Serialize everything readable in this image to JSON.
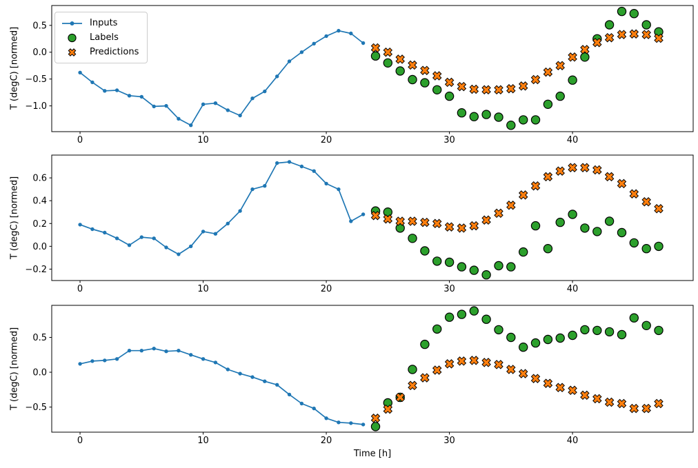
{
  "colors": {
    "inputs": "#1f77b4",
    "labels_fill": "#2ca02c",
    "predictions_fill": "#ff7f0e",
    "marker_edge": "#000000",
    "axis": "#000000",
    "text": "#000000",
    "legend_border": "#cccccc",
    "background": "#ffffff"
  },
  "legend": {
    "items": [
      {
        "label": "Inputs",
        "marker": "line-dot"
      },
      {
        "label": "Labels",
        "marker": "circle"
      },
      {
        "label": "Predictions",
        "marker": "x-cross"
      }
    ]
  },
  "axes": {
    "ylabel": "T (degC) [normed]",
    "xlabel": "Time [h]",
    "x_ticks": [
      0,
      10,
      20,
      30,
      40
    ],
    "xlim": [
      -2.3,
      49.8
    ]
  },
  "chart_data": [
    {
      "type": "line",
      "panel": 1,
      "title": "",
      "xlabel": "",
      "ylabel": "T (degC) [normed]",
      "x_ticks": [
        0,
        10,
        20,
        30,
        40
      ],
      "y_ticks": [
        0.5,
        0.0,
        -0.5,
        -1.0
      ],
      "xlim": [
        -2.3,
        49.8
      ],
      "ylim": [
        -1.48,
        0.87
      ],
      "grid": false,
      "legend_position": "upper left",
      "series": [
        {
          "name": "Inputs",
          "type": "line",
          "marker": "dot",
          "color": "#1f77b4",
          "x": [
            0,
            1,
            2,
            3,
            4,
            5,
            6,
            7,
            8,
            9,
            10,
            11,
            12,
            13,
            14,
            15,
            16,
            17,
            18,
            19,
            20,
            21,
            22,
            23
          ],
          "values": [
            -0.38,
            -0.56,
            -0.72,
            -0.71,
            -0.81,
            -0.83,
            -1.01,
            -1.0,
            -1.24,
            -1.36,
            -0.97,
            -0.95,
            -1.08,
            -1.18,
            -0.86,
            -0.73,
            -0.45,
            -0.17,
            0.0,
            0.16,
            0.3,
            0.4,
            0.35,
            0.17
          ]
        },
        {
          "name": "Labels",
          "type": "scatter",
          "marker": "circle",
          "color": "#2ca02c",
          "x": [
            24,
            25,
            26,
            27,
            28,
            29,
            30,
            31,
            32,
            33,
            34,
            35,
            36,
            37,
            38,
            39,
            40,
            41,
            42,
            43,
            44,
            45,
            46,
            47
          ],
          "values": [
            -0.07,
            -0.2,
            -0.35,
            -0.51,
            -0.57,
            -0.7,
            -0.82,
            -1.13,
            -1.2,
            -1.16,
            -1.21,
            -1.36,
            -1.26,
            -1.26,
            -0.97,
            -0.82,
            -0.52,
            -0.09,
            0.25,
            0.51,
            0.76,
            0.72,
            0.51,
            0.38
          ]
        },
        {
          "name": "Predictions",
          "type": "scatter",
          "marker": "X",
          "color": "#ff7f0e",
          "x": [
            24,
            25,
            26,
            27,
            28,
            29,
            30,
            31,
            32,
            33,
            34,
            35,
            36,
            37,
            38,
            39,
            40,
            41,
            42,
            43,
            44,
            45,
            46,
            47
          ],
          "values": [
            0.08,
            0.0,
            -0.13,
            -0.24,
            -0.34,
            -0.44,
            -0.56,
            -0.64,
            -0.69,
            -0.7,
            -0.7,
            -0.68,
            -0.63,
            -0.51,
            -0.37,
            -0.25,
            -0.09,
            0.05,
            0.18,
            0.27,
            0.33,
            0.34,
            0.33,
            0.26
          ]
        }
      ]
    },
    {
      "type": "line",
      "panel": 2,
      "title": "",
      "xlabel": "",
      "ylabel": "T (degC) [normed]",
      "x_ticks": [
        0,
        10,
        20,
        30,
        40
      ],
      "y_ticks": [
        0.6,
        0.4,
        0.2,
        0.0,
        -0.2
      ],
      "xlim": [
        -2.3,
        49.8
      ],
      "ylim": [
        -0.3,
        0.8
      ],
      "grid": false,
      "series": [
        {
          "name": "Inputs",
          "type": "line",
          "marker": "dot",
          "color": "#1f77b4",
          "x": [
            0,
            1,
            2,
            3,
            4,
            5,
            6,
            7,
            8,
            9,
            10,
            11,
            12,
            13,
            14,
            15,
            16,
            17,
            18,
            19,
            20,
            21,
            22,
            23
          ],
          "values": [
            0.19,
            0.15,
            0.12,
            0.07,
            0.01,
            0.08,
            0.07,
            -0.01,
            -0.07,
            0.0,
            0.13,
            0.11,
            0.2,
            0.31,
            0.5,
            0.53,
            0.73,
            0.74,
            0.7,
            0.66,
            0.55,
            0.5,
            0.22,
            0.28
          ]
        },
        {
          "name": "Labels",
          "type": "scatter",
          "marker": "circle",
          "color": "#2ca02c",
          "x": [
            24,
            25,
            26,
            27,
            28,
            29,
            30,
            31,
            32,
            33,
            34,
            35,
            36,
            37,
            38,
            39,
            40,
            41,
            42,
            43,
            44,
            45,
            46,
            47
          ],
          "values": [
            0.31,
            0.3,
            0.16,
            0.07,
            -0.04,
            -0.13,
            -0.14,
            -0.18,
            -0.21,
            -0.25,
            -0.17,
            -0.18,
            -0.05,
            0.18,
            -0.02,
            0.21,
            0.28,
            0.16,
            0.13,
            0.22,
            0.12,
            0.03,
            -0.02,
            0.0
          ]
        },
        {
          "name": "Predictions",
          "type": "scatter",
          "marker": "X",
          "color": "#ff7f0e",
          "x": [
            24,
            25,
            26,
            27,
            28,
            29,
            30,
            31,
            32,
            33,
            34,
            35,
            36,
            37,
            38,
            39,
            40,
            41,
            42,
            43,
            44,
            45,
            46,
            47
          ],
          "values": [
            0.27,
            0.24,
            0.22,
            0.22,
            0.21,
            0.2,
            0.17,
            0.16,
            0.18,
            0.23,
            0.29,
            0.36,
            0.45,
            0.53,
            0.61,
            0.66,
            0.69,
            0.69,
            0.67,
            0.61,
            0.55,
            0.46,
            0.39,
            0.33
          ]
        }
      ]
    },
    {
      "type": "line",
      "panel": 3,
      "title": "",
      "xlabel": "Time [h]",
      "ylabel": "T (degC) [normed]",
      "x_ticks": [
        0,
        10,
        20,
        30,
        40
      ],
      "y_ticks": [
        0.5,
        0.0,
        -0.5
      ],
      "xlim": [
        -2.3,
        49.8
      ],
      "ylim": [
        -0.86,
        0.96
      ],
      "grid": false,
      "series": [
        {
          "name": "Inputs",
          "type": "line",
          "marker": "dot",
          "color": "#1f77b4",
          "x": [
            0,
            1,
            2,
            3,
            4,
            5,
            6,
            7,
            8,
            9,
            10,
            11,
            12,
            13,
            14,
            15,
            16,
            17,
            18,
            19,
            20,
            21,
            22,
            23
          ],
          "values": [
            0.12,
            0.16,
            0.17,
            0.19,
            0.31,
            0.31,
            0.34,
            0.3,
            0.31,
            0.25,
            0.19,
            0.14,
            0.04,
            -0.02,
            -0.07,
            -0.13,
            -0.18,
            -0.32,
            -0.45,
            -0.52,
            -0.66,
            -0.72,
            -0.73,
            -0.75
          ]
        },
        {
          "name": "Labels",
          "type": "scatter",
          "marker": "circle",
          "color": "#2ca02c",
          "x": [
            24,
            25,
            26,
            27,
            28,
            29,
            30,
            31,
            32,
            33,
            34,
            35,
            36,
            37,
            38,
            39,
            40,
            41,
            42,
            43,
            44,
            45,
            46,
            47
          ],
          "values": [
            -0.78,
            -0.44,
            -0.36,
            0.04,
            0.4,
            0.62,
            0.79,
            0.83,
            0.88,
            0.76,
            0.61,
            0.5,
            0.36,
            0.42,
            0.47,
            0.49,
            0.53,
            0.61,
            0.6,
            0.58,
            0.54,
            0.78,
            0.67,
            0.6
          ]
        },
        {
          "name": "Predictions",
          "type": "scatter",
          "marker": "X",
          "color": "#ff7f0e",
          "x": [
            24,
            25,
            26,
            27,
            28,
            29,
            30,
            31,
            32,
            33,
            34,
            35,
            36,
            37,
            38,
            39,
            40,
            41,
            42,
            43,
            44,
            45,
            46,
            47
          ],
          "values": [
            -0.66,
            -0.53,
            -0.36,
            -0.19,
            -0.08,
            0.03,
            0.12,
            0.16,
            0.17,
            0.14,
            0.11,
            0.04,
            -0.02,
            -0.09,
            -0.16,
            -0.22,
            -0.26,
            -0.33,
            -0.38,
            -0.43,
            -0.45,
            -0.52,
            -0.52,
            -0.45
          ]
        }
      ]
    }
  ]
}
